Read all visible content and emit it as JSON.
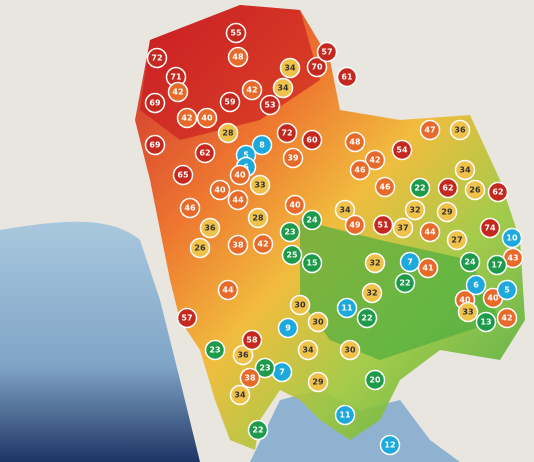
{
  "markers": [
    72,
    71,
    42,
    69,
    69,
    42,
    40,
    62,
    55,
    48,
    34,
    70,
    61,
    57,
    34,
    59,
    42,
    53,
    72,
    39,
    60,
    28,
    8,
    5,
    6,
    48,
    42,
    46,
    54,
    47,
    36,
    46,
    22,
    62,
    34,
    26,
    62,
    29,
    32,
    34,
    51,
    49,
    37,
    44,
    27,
    74,
    10,
    43,
    17,
    24,
    41,
    7,
    32,
    22,
    40,
    40,
    33,
    13,
    42,
    6,
    5,
    15,
    25,
    42,
    38,
    46,
    65,
    36,
    26,
    57,
    23,
    36,
    58,
    9,
    30,
    30,
    11,
    32,
    22,
    30,
    34,
    7,
    23,
    29,
    11,
    20,
    34,
    22,
    38,
    12,
    44,
    28,
    40,
    24,
    23,
    44,
    33,
    40,
    40
  ]
}
